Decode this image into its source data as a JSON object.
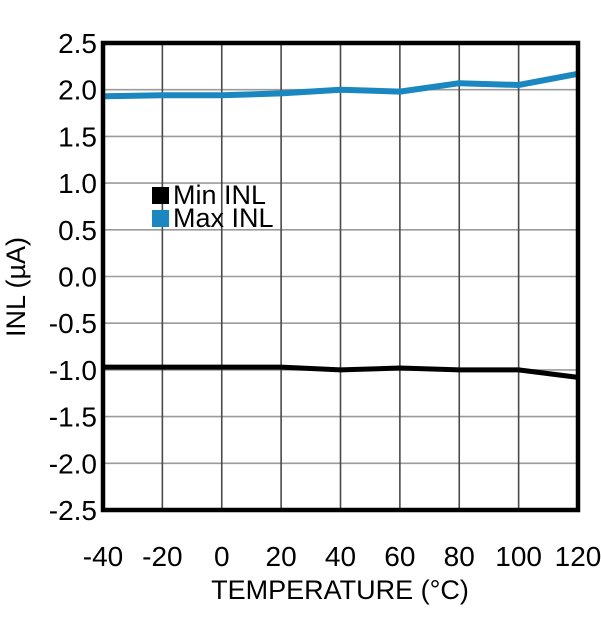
{
  "figure": {
    "background": "#ffffff"
  },
  "colors": {
    "frame": "#000000",
    "grid_horizontal": "#9b9b9b",
    "grid_vertical": "#4a4a4a",
    "text": "#000000",
    "series_min": "#000000",
    "series_max": "#1a87c0"
  },
  "chart_data": {
    "type": "line",
    "title": "",
    "xlabel": "TEMPERATURE (°C)",
    "ylabel": "INL (µA)",
    "x": [
      -40,
      -20,
      0,
      20,
      40,
      60,
      80,
      100,
      120
    ],
    "series": [
      {
        "name": "Min INL",
        "color": "#000000",
        "values": [
          -0.97,
          -0.97,
          -0.97,
          -0.97,
          -1.0,
          -0.98,
          -1.0,
          -1.0,
          -1.08
        ]
      },
      {
        "name": "Max INL",
        "color": "#1a87c0",
        "values": [
          1.93,
          1.94,
          1.94,
          1.96,
          2.0,
          1.98,
          2.07,
          2.05,
          2.17
        ]
      }
    ],
    "xlim": [
      -40,
      120
    ],
    "ylim": [
      -2.5,
      2.5
    ],
    "xticks": [
      -40,
      -20,
      0,
      20,
      40,
      60,
      80,
      100,
      120
    ],
    "xtick_labels": [
      "-40",
      "-20",
      "0",
      "20",
      "40",
      "60",
      "80",
      "100",
      "120"
    ],
    "yticks": [
      2.5,
      2.0,
      1.5,
      1.0,
      0.5,
      0.0,
      -0.5,
      -1.0,
      -1.5,
      -2.0,
      -2.5
    ],
    "ytick_labels": [
      "2.5",
      "2.0",
      "1.5",
      "1.0",
      "0.5",
      "0.0",
      "-0.5",
      "-1.0",
      "-1.5",
      "-2.0",
      "-2.5"
    ],
    "grid": true,
    "legend": {
      "position": "upper-left-inside",
      "items": [
        "Min INL",
        "Max INL"
      ]
    }
  }
}
